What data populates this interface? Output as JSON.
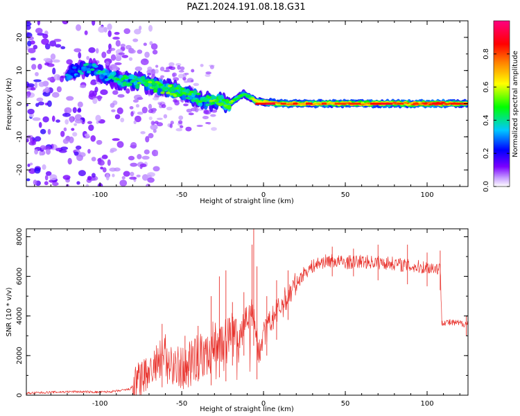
{
  "title": "PAZ1.2024.191.08.18.G31",
  "chart_data": [
    {
      "type": "heatmap",
      "xlabel": "Height of straight line (km)",
      "ylabel": "Frequency (Hz)",
      "xlim": [
        -145,
        125
      ],
      "ylim": [
        -25,
        25
      ],
      "x_ticks": [
        "-100",
        "-50",
        "0",
        "50",
        "100"
      ],
      "y_ticks": [
        "-20",
        "-10",
        "0",
        "10",
        "20"
      ],
      "colorbar": {
        "label": "Normalized spectral amplitude",
        "range": [
          0,
          1
        ],
        "ticks": [
          "0.0",
          "0.2",
          "0.4",
          "0.6",
          "0.8"
        ],
        "colors": [
          "#ffffff",
          "#7a00ff",
          "#0000ff",
          "#00c8ff",
          "#00ff00",
          "#ffff00",
          "#ff8000",
          "#ff0000",
          "#ff0080"
        ]
      },
      "ridge": [
        {
          "x": -120,
          "f": 9,
          "amp": 0.3
        },
        {
          "x": -105,
          "f": 11,
          "amp": 0.35
        },
        {
          "x": -95,
          "f": 8,
          "amp": 0.4
        },
        {
          "x": -85,
          "f": 7,
          "amp": 0.45
        },
        {
          "x": -75,
          "f": 6.5,
          "amp": 0.45
        },
        {
          "x": -65,
          "f": 5,
          "amp": 0.5
        },
        {
          "x": -55,
          "f": 4,
          "amp": 0.5
        },
        {
          "x": -45,
          "f": 3,
          "amp": 0.45
        },
        {
          "x": -38,
          "f": 1,
          "amp": 0.45
        },
        {
          "x": -30,
          "f": 0.5,
          "amp": 0.5
        },
        {
          "x": -20,
          "f": 0.3,
          "amp": 0.55
        },
        {
          "x": -12,
          "f": 3,
          "amp": 0.45
        },
        {
          "x": -5,
          "f": 0.8,
          "amp": 0.6
        },
        {
          "x": 10,
          "f": 0,
          "amp": 0.75
        },
        {
          "x": 30,
          "f": 0,
          "amp": 0.7
        },
        {
          "x": 50,
          "f": 0,
          "amp": 0.75
        },
        {
          "x": 70,
          "f": 0,
          "amp": 0.75
        },
        {
          "x": 90,
          "f": 0,
          "amp": 0.75
        },
        {
          "x": 105,
          "f": 0,
          "amp": 0.85
        },
        {
          "x": 120,
          "f": 0,
          "amp": 0.7
        }
      ]
    },
    {
      "type": "line",
      "xlabel": "Height of straight line (km)",
      "ylabel": "SNR (10 * v/v)",
      "xlim": [
        -145,
        125
      ],
      "ylim": [
        0,
        8400
      ],
      "x_ticks": [
        "-100",
        "-50",
        "0",
        "50",
        "100"
      ],
      "y_ticks": [
        "0",
        "2000",
        "4000",
        "6000",
        "8000"
      ],
      "series": [
        {
          "color": "#e8302a",
          "x": [
            -145,
            -130,
            -115,
            -100,
            -90,
            -82,
            -75,
            -70,
            -65,
            -60,
            -55,
            -50,
            -45,
            -40,
            -35,
            -30,
            -25,
            -20,
            -15,
            -10,
            -7,
            -5,
            -3,
            0,
            5,
            10,
            15,
            20,
            25,
            30,
            35,
            40,
            50,
            60,
            70,
            80,
            90,
            100,
            108,
            109,
            115,
            125
          ],
          "y": [
            100,
            150,
            180,
            150,
            200,
            300,
            800,
            1200,
            1500,
            2000,
            1600,
            1300,
            1800,
            2200,
            1900,
            2800,
            2500,
            3400,
            3000,
            4000,
            4300,
            3500,
            2000,
            3000,
            3800,
            4400,
            5000,
            5600,
            6200,
            6500,
            6700,
            6800,
            6700,
            6750,
            6700,
            6650,
            6500,
            6450,
            6400,
            3700,
            3650,
            3600
          ]
        }
      ],
      "spikes": [
        {
          "x": -62,
          "lo": 400,
          "hi": 3600
        },
        {
          "x": -48,
          "lo": 600,
          "hi": 3000
        },
        {
          "x": -40,
          "lo": 700,
          "hi": 3500
        },
        {
          "x": -32,
          "lo": 500,
          "hi": 5000
        },
        {
          "x": -27,
          "lo": 900,
          "hi": 6000
        },
        {
          "x": -23,
          "lo": 700,
          "hi": 6300
        },
        {
          "x": -19,
          "lo": 1500,
          "hi": 4700
        },
        {
          "x": -12,
          "lo": 2000,
          "hi": 5200
        },
        {
          "x": -7,
          "lo": 3500,
          "hi": 7600
        },
        {
          "x": -6,
          "lo": 2500,
          "hi": 8400
        },
        {
          "x": -4,
          "lo": 800,
          "hi": 6500
        },
        {
          "x": 2,
          "lo": 2000,
          "hi": 5000
        },
        {
          "x": 8,
          "lo": 2800,
          "hi": 5800
        },
        {
          "x": 15,
          "lo": 3800,
          "hi": 6300
        },
        {
          "x": 42,
          "lo": 6000,
          "hi": 7500
        },
        {
          "x": 55,
          "lo": 6000,
          "hi": 7400
        },
        {
          "x": 70,
          "lo": 5800,
          "hi": 7600
        },
        {
          "x": 88,
          "lo": 5600,
          "hi": 7600
        },
        {
          "x": 100,
          "lo": 5500,
          "hi": 7200
        },
        {
          "x": 108,
          "lo": 5300,
          "hi": 7300
        },
        {
          "x": 124,
          "lo": 3000,
          "hi": 4000
        }
      ]
    }
  ]
}
